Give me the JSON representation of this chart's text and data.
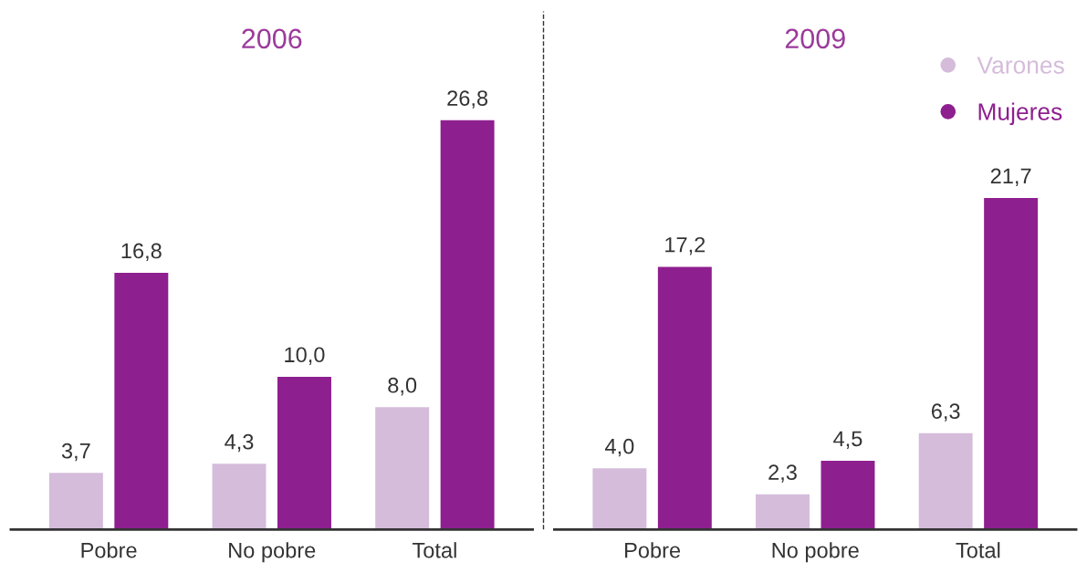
{
  "chart_data": [
    {
      "type": "bar",
      "title": "2006",
      "categories": [
        "Pobre",
        "No pobre",
        "Total"
      ],
      "tick_labels": "x",
      "series": [
        {
          "color": "#d5bcdb",
          "values": [
            3.7,
            4.3,
            8.0
          ],
          "value_labels": [
            "3,7",
            "4,3",
            "8,0"
          ]
        },
        {
          "color": "#8e1f8f",
          "values": [
            16.8,
            10.0,
            26.8
          ],
          "value_labels": [
            "16,8",
            "10,0",
            "26,8"
          ]
        }
      ]
    },
    {
      "type": "bar",
      "title": "2009",
      "categories": [
        "Pobre",
        "No pobre",
        "Total"
      ],
      "tick_labels": "x",
      "legend": "top right",
      "series": [
        {
          "name": "Varones",
          "color": "#d5bcdb",
          "values": [
            4.0,
            2.3,
            6.3
          ],
          "value_labels": [
            "4,0",
            "2,3",
            "6,3"
          ]
        },
        {
          "name": "Mujeres",
          "color": "#8e1f8f",
          "values": [
            17.2,
            4.5,
            21.7
          ],
          "value_labels": [
            "17,2",
            "4,5",
            "21,7"
          ]
        }
      ]
    }
  ]
}
